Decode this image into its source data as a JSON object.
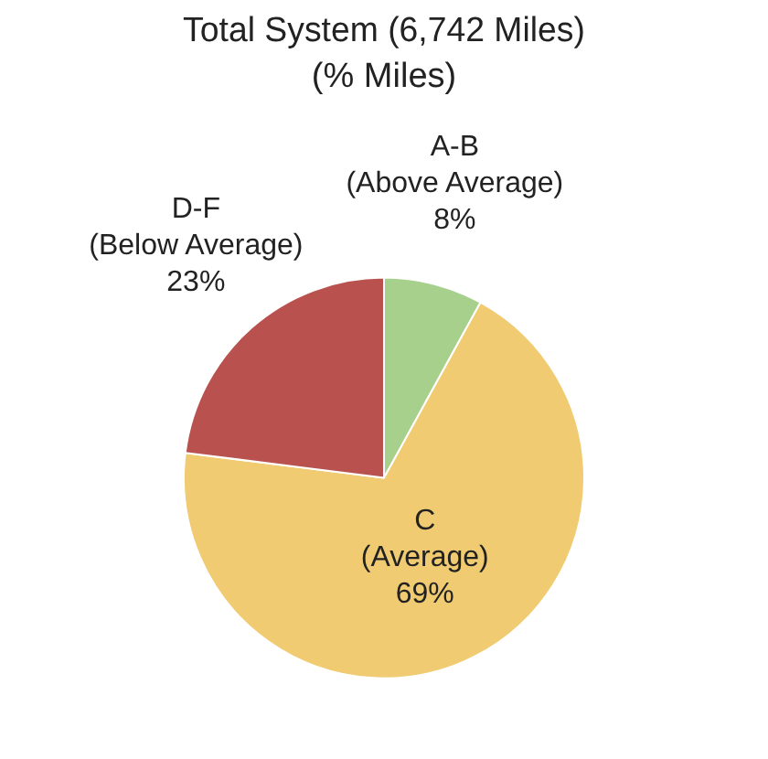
{
  "chart_data": {
    "type": "pie",
    "title": "Total System (6,742 Miles)",
    "subtitle": "(% Miles)",
    "categories": [
      "A-B (Above Average)",
      "C (Average)",
      "D-F (Below Average)"
    ],
    "values": [
      8,
      69,
      23
    ],
    "colors": [
      "#a8d08d",
      "#f0cb72",
      "#b9524f"
    ],
    "value_labels": [
      "8%",
      "69%",
      "23%"
    ],
    "legend": false
  }
}
